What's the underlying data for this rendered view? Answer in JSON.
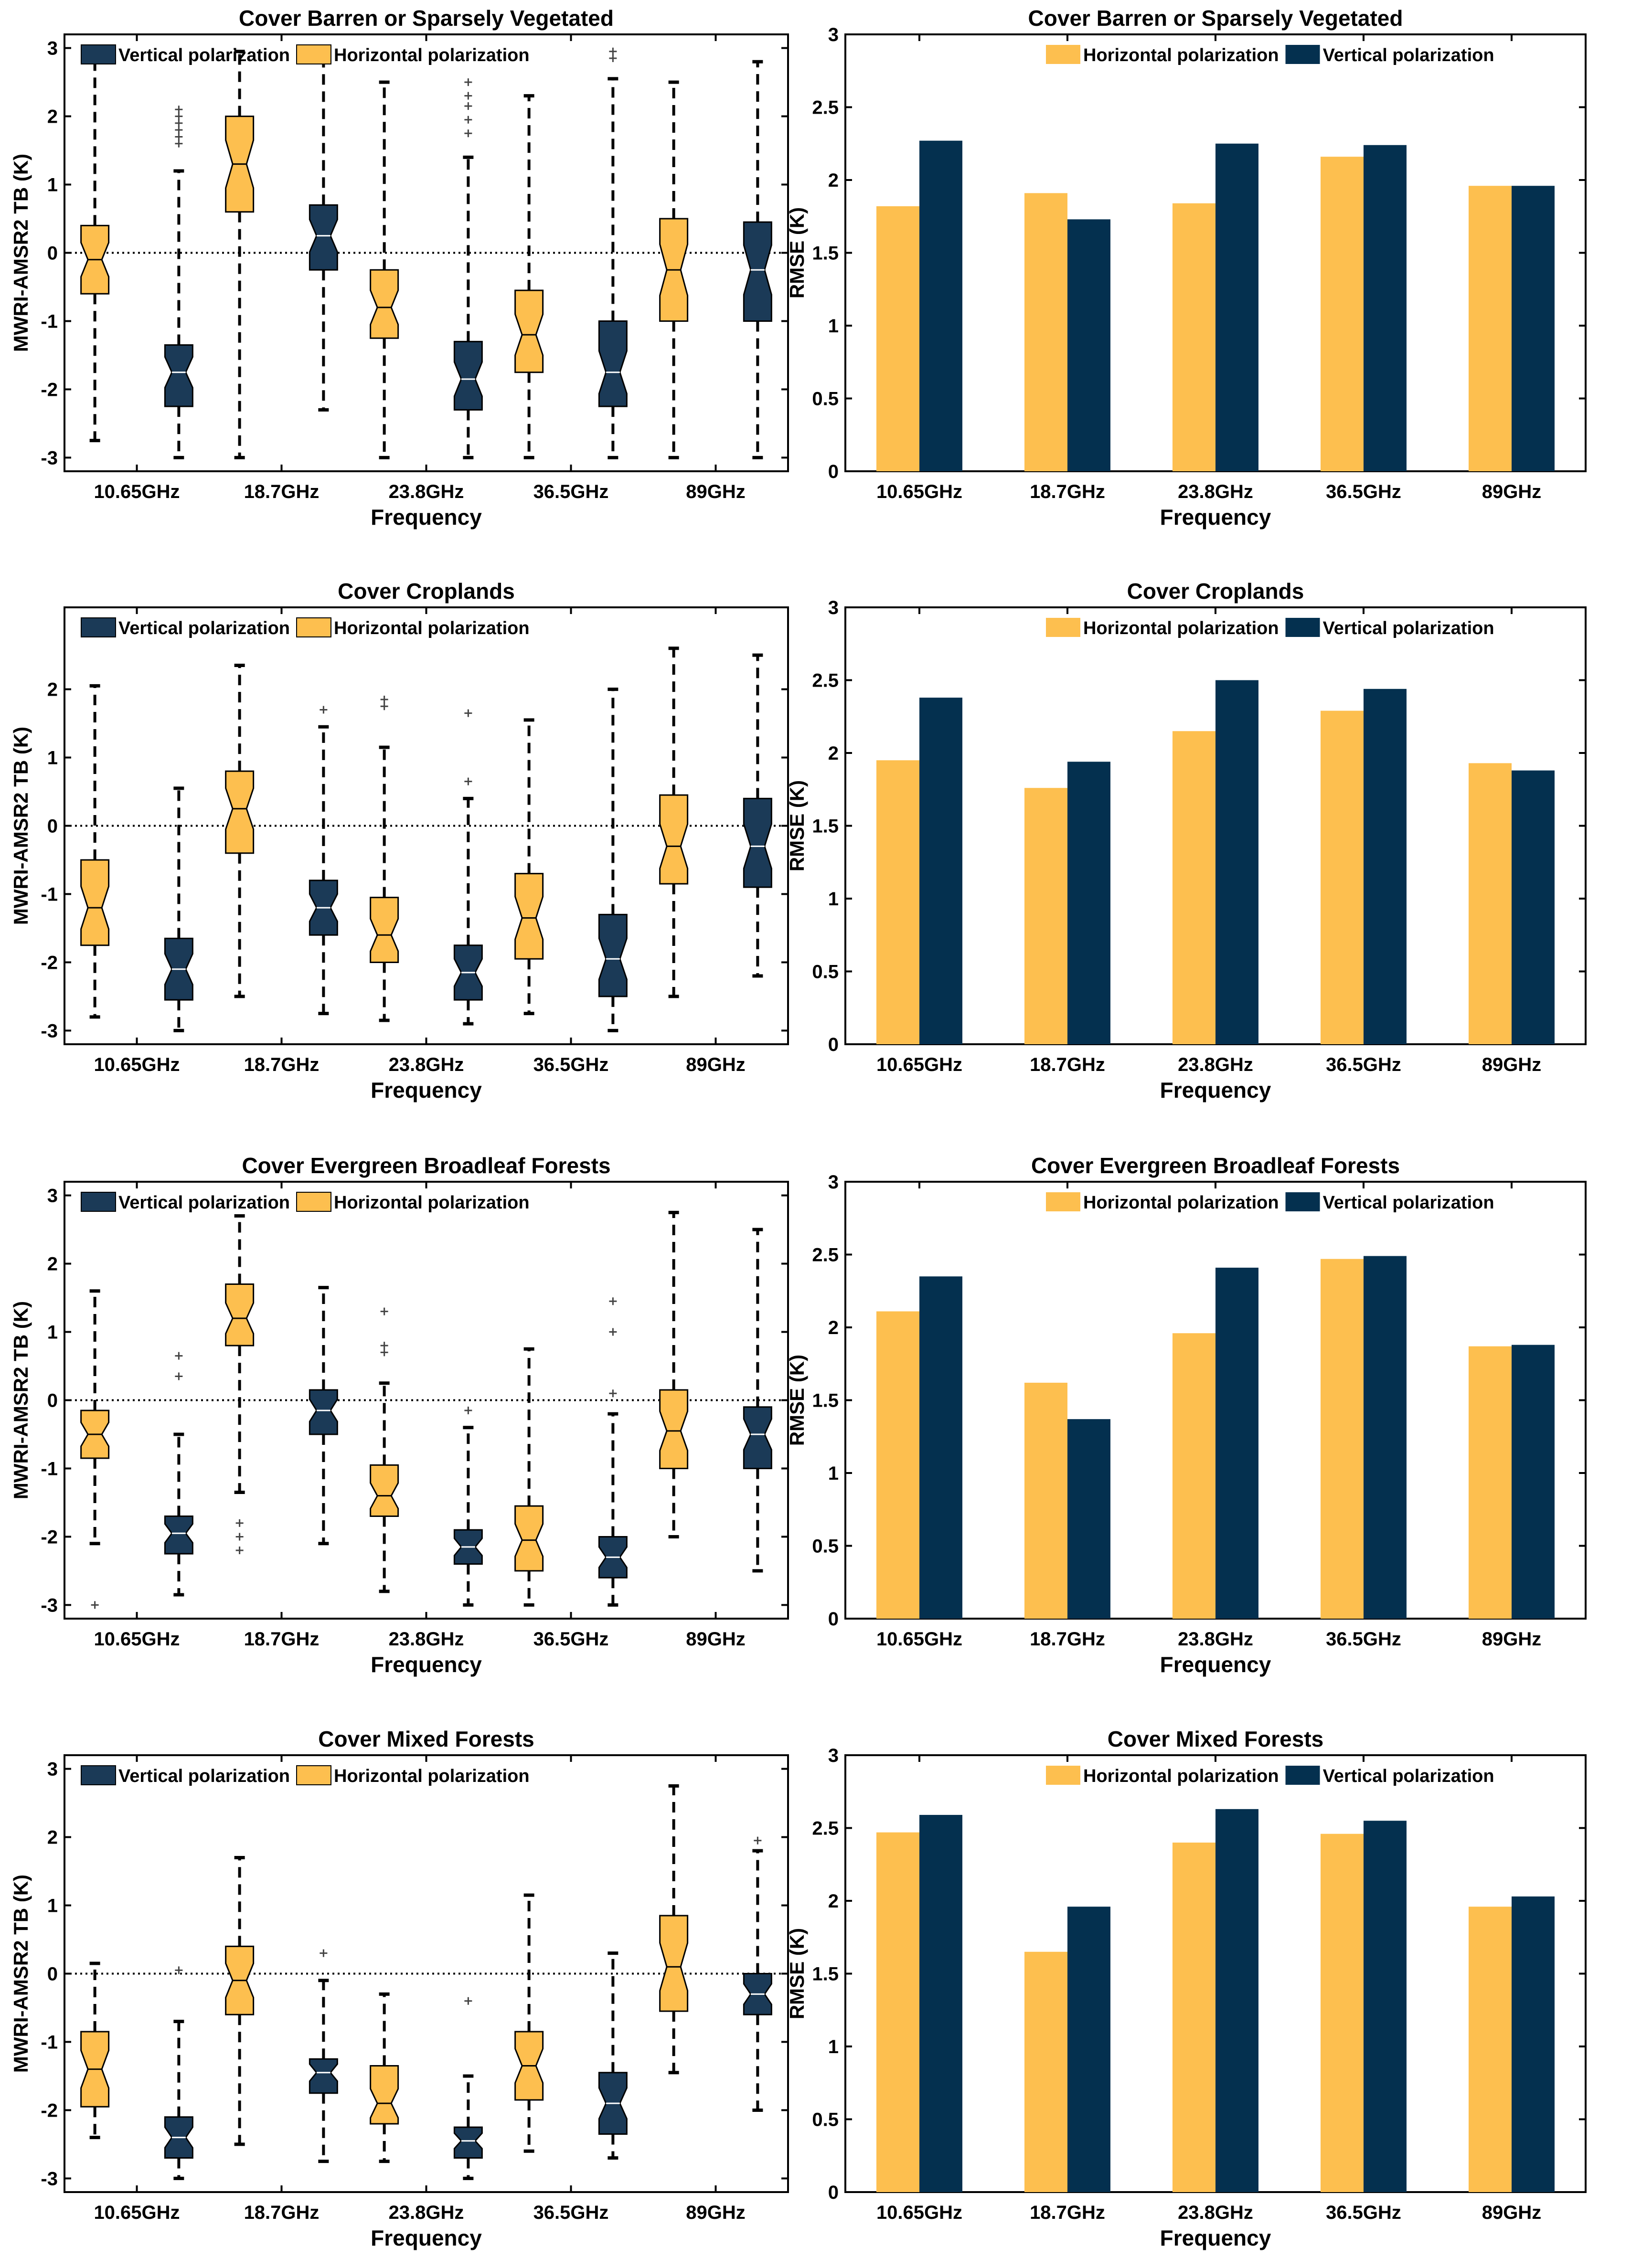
{
  "figure": {
    "xlabel": "Frequency",
    "box_ylabel": "MWRI-AMSR2 TB (K)",
    "bar_ylabel": "RMSE (K)",
    "frequencies": [
      "10.65GHz",
      "18.7GHz",
      "23.8GHz",
      "36.5GHz",
      "89GHz"
    ],
    "legend": {
      "vertical": "Vertical polarization",
      "horizontal": "Horizontal polarization"
    },
    "colors": {
      "horizontal": "#fdbf4f",
      "vertical_box": "#1b3a57",
      "vertical_bar": "#04304f",
      "axis": "#000000"
    }
  },
  "chart_data": [
    {
      "type": "box",
      "title": "Cover  Barren or Sparsely Vegetated",
      "xlabel": "Frequency",
      "ylabel": "MWRI-AMSR2 TB (K)",
      "ylim": [
        -3.2,
        3.2
      ],
      "yticks": [
        -3,
        -2,
        -1,
        0,
        1,
        2,
        3
      ],
      "legend_order": [
        "vertical",
        "horizontal"
      ],
      "categories": [
        "10.65GHz",
        "18.7GHz",
        "23.8GHz",
        "36.5GHz",
        "89GHz"
      ],
      "series": [
        {
          "name": "Horizontal polarization",
          "key": "horizontal",
          "boxes": [
            {
              "min": -2.75,
              "q1": -0.6,
              "median": -0.1,
              "q3": 0.4,
              "max": 2.8,
              "outliers": []
            },
            {
              "min": -3.0,
              "q1": 0.6,
              "median": 1.3,
              "q3": 2.0,
              "max": 2.95,
              "outliers": []
            },
            {
              "min": -3.0,
              "q1": -1.25,
              "median": -0.8,
              "q3": -0.25,
              "max": 2.5,
              "outliers": []
            },
            {
              "min": -3.0,
              "q1": -1.75,
              "median": -1.2,
              "q3": -0.55,
              "max": 2.3,
              "outliers": []
            },
            {
              "min": -3.0,
              "q1": -1.0,
              "median": -0.25,
              "q3": 0.5,
              "max": 2.5,
              "outliers": []
            }
          ]
        },
        {
          "name": "Vertical polarization",
          "key": "vertical",
          "boxes": [
            {
              "min": -3.0,
              "q1": -2.25,
              "median": -1.75,
              "q3": -1.35,
              "max": 1.2,
              "outliers": [
                1.6,
                1.7,
                1.8,
                1.9,
                2.0,
                2.1
              ]
            },
            {
              "min": -2.3,
              "q1": -0.25,
              "median": 0.25,
              "q3": 0.7,
              "max": 3.0,
              "outliers": []
            },
            {
              "min": -3.0,
              "q1": -2.3,
              "median": -1.85,
              "q3": -1.3,
              "max": 1.4,
              "outliers": [
                1.75,
                1.95,
                2.15,
                2.3,
                2.5
              ]
            },
            {
              "min": -3.0,
              "q1": -2.25,
              "median": -1.75,
              "q3": -1.0,
              "max": 2.55,
              "outliers": [
                2.85,
                2.95
              ]
            },
            {
              "min": -3.0,
              "q1": -1.0,
              "median": -0.25,
              "q3": 0.45,
              "max": 2.8,
              "outliers": []
            }
          ]
        }
      ]
    },
    {
      "type": "bar",
      "title": "Cover  Barren or Sparsely Vegetated",
      "xlabel": "Frequency",
      "ylabel": "RMSE (K)",
      "ylim": [
        0,
        3
      ],
      "yticks": [
        0,
        0.5,
        1,
        1.5,
        2,
        2.5,
        3
      ],
      "legend_order": [
        "horizontal",
        "vertical"
      ],
      "categories": [
        "10.65GHz",
        "18.7GHz",
        "23.8GHz",
        "36.5GHz",
        "89GHz"
      ],
      "series": [
        {
          "name": "Horizontal polarization",
          "key": "horizontal",
          "values": [
            1.82,
            1.91,
            1.84,
            2.16,
            1.96
          ]
        },
        {
          "name": "Vertical polarization",
          "key": "vertical",
          "values": [
            2.27,
            1.73,
            2.25,
            2.24,
            1.96
          ]
        }
      ]
    },
    {
      "type": "box",
      "title": "Cover  Croplands",
      "xlabel": "Frequency",
      "ylabel": "MWRI-AMSR2 TB (K)",
      "ylim": [
        -3.2,
        3.2
      ],
      "yticks": [
        -3,
        -2,
        -1,
        0,
        1,
        2
      ],
      "legend_order": [
        "vertical",
        "horizontal"
      ],
      "categories": [
        "10.65GHz",
        "18.7GHz",
        "23.8GHz",
        "36.5GHz",
        "89GHz"
      ],
      "series": [
        {
          "name": "Horizontal polarization",
          "key": "horizontal",
          "boxes": [
            {
              "min": -2.8,
              "q1": -1.75,
              "median": -1.2,
              "q3": -0.5,
              "max": 2.05,
              "outliers": []
            },
            {
              "min": -2.5,
              "q1": -0.4,
              "median": 0.25,
              "q3": 0.8,
              "max": 2.35,
              "outliers": []
            },
            {
              "min": -2.85,
              "q1": -2.0,
              "median": -1.6,
              "q3": -1.05,
              "max": 1.15,
              "outliers": [
                1.75,
                1.85
              ]
            },
            {
              "min": -2.75,
              "q1": -1.95,
              "median": -1.35,
              "q3": -0.7,
              "max": 1.55,
              "outliers": []
            },
            {
              "min": -2.5,
              "q1": -0.85,
              "median": -0.3,
              "q3": 0.45,
              "max": 2.6,
              "outliers": []
            }
          ]
        },
        {
          "name": "Vertical polarization",
          "key": "vertical",
          "boxes": [
            {
              "min": -3.0,
              "q1": -2.55,
              "median": -2.1,
              "q3": -1.65,
              "max": 0.55,
              "outliers": []
            },
            {
              "min": -2.75,
              "q1": -1.6,
              "median": -1.2,
              "q3": -0.8,
              "max": 1.45,
              "outliers": [
                1.7
              ]
            },
            {
              "min": -2.9,
              "q1": -2.55,
              "median": -2.15,
              "q3": -1.75,
              "max": 0.4,
              "outliers": [
                0.65,
                1.65
              ]
            },
            {
              "min": -3.0,
              "q1": -2.5,
              "median": -1.95,
              "q3": -1.3,
              "max": 2.0,
              "outliers": []
            },
            {
              "min": -2.2,
              "q1": -0.9,
              "median": -0.3,
              "q3": 0.4,
              "max": 2.5,
              "outliers": []
            }
          ]
        }
      ]
    },
    {
      "type": "bar",
      "title": "Cover  Croplands",
      "xlabel": "Frequency",
      "ylabel": "RMSE (K)",
      "ylim": [
        0,
        3
      ],
      "yticks": [
        0,
        0.5,
        1,
        1.5,
        2,
        2.5,
        3
      ],
      "legend_order": [
        "horizontal",
        "vertical"
      ],
      "categories": [
        "10.65GHz",
        "18.7GHz",
        "23.8GHz",
        "36.5GHz",
        "89GHz"
      ],
      "series": [
        {
          "name": "Horizontal polarization",
          "key": "horizontal",
          "values": [
            1.95,
            1.76,
            2.15,
            2.29,
            1.93
          ]
        },
        {
          "name": "Vertical polarization",
          "key": "vertical",
          "values": [
            2.38,
            1.94,
            2.5,
            2.44,
            1.88
          ]
        }
      ]
    },
    {
      "type": "box",
      "title": "Cover  Evergreen Broadleaf Forests",
      "xlabel": "Frequency",
      "ylabel": "MWRI-AMSR2 TB (K)",
      "ylim": [
        -3.2,
        3.2
      ],
      "yticks": [
        -3,
        -2,
        -1,
        0,
        1,
        2,
        3
      ],
      "legend_order": [
        "vertical",
        "horizontal"
      ],
      "categories": [
        "10.65GHz",
        "18.7GHz",
        "23.8GHz",
        "36.5GHz",
        "89GHz"
      ],
      "series": [
        {
          "name": "Horizontal polarization",
          "key": "horizontal",
          "boxes": [
            {
              "min": -2.1,
              "q1": -0.85,
              "median": -0.5,
              "q3": -0.15,
              "max": 1.6,
              "outliers": [
                -3.0
              ]
            },
            {
              "min": -1.35,
              "q1": 0.8,
              "median": 1.2,
              "q3": 1.7,
              "max": 2.7,
              "outliers": [
                -1.8,
                -2.0,
                -2.2
              ]
            },
            {
              "min": -2.8,
              "q1": -1.7,
              "median": -1.4,
              "q3": -0.95,
              "max": 0.25,
              "outliers": [
                0.7,
                0.8,
                1.3
              ]
            },
            {
              "min": -3.0,
              "q1": -2.5,
              "median": -2.05,
              "q3": -1.55,
              "max": 0.75,
              "outliers": []
            },
            {
              "min": -2.0,
              "q1": -1.0,
              "median": -0.45,
              "q3": 0.15,
              "max": 2.75,
              "outliers": []
            }
          ]
        },
        {
          "name": "Vertical polarization",
          "key": "vertical",
          "boxes": [
            {
              "min": -2.85,
              "q1": -2.25,
              "median": -1.95,
              "q3": -1.7,
              "max": -0.5,
              "outliers": [
                0.35,
                0.65
              ]
            },
            {
              "min": -2.1,
              "q1": -0.5,
              "median": -0.15,
              "q3": 0.15,
              "max": 1.65,
              "outliers": []
            },
            {
              "min": -3.0,
              "q1": -2.4,
              "median": -2.15,
              "q3": -1.9,
              "max": -0.4,
              "outliers": [
                -0.15
              ]
            },
            {
              "min": -3.0,
              "q1": -2.6,
              "median": -2.3,
              "q3": -2.0,
              "max": -0.2,
              "outliers": [
                0.1,
                1.0,
                1.45
              ]
            },
            {
              "min": -2.5,
              "q1": -1.0,
              "median": -0.5,
              "q3": -0.1,
              "max": 2.5,
              "outliers": []
            }
          ]
        }
      ]
    },
    {
      "type": "bar",
      "title": "Cover  Evergreen Broadleaf Forests",
      "xlabel": "Frequency",
      "ylabel": "RMSE (K)",
      "ylim": [
        0,
        3
      ],
      "yticks": [
        0,
        0.5,
        1,
        1.5,
        2,
        2.5,
        3
      ],
      "legend_order": [
        "horizontal",
        "vertical"
      ],
      "categories": [
        "10.65GHz",
        "18.7GHz",
        "23.8GHz",
        "36.5GHz",
        "89GHz"
      ],
      "series": [
        {
          "name": "Horizontal polarization",
          "key": "horizontal",
          "values": [
            2.11,
            1.62,
            1.96,
            2.47,
            1.87
          ]
        },
        {
          "name": "Vertical polarization",
          "key": "vertical",
          "values": [
            2.35,
            1.37,
            2.41,
            2.49,
            1.88
          ]
        }
      ]
    },
    {
      "type": "box",
      "title": "Cover  Mixed Forests",
      "xlabel": "Frequency",
      "ylabel": "MWRI-AMSR2 TB (K)",
      "ylim": [
        -3.2,
        3.2
      ],
      "yticks": [
        -3,
        -2,
        -1,
        0,
        1,
        2,
        3
      ],
      "legend_order": [
        "vertical",
        "horizontal"
      ],
      "categories": [
        "10.65GHz",
        "18.7GHz",
        "23.8GHz",
        "36.5GHz",
        "89GHz"
      ],
      "series": [
        {
          "name": "Horizontal polarization",
          "key": "horizontal",
          "boxes": [
            {
              "min": -2.4,
              "q1": -1.95,
              "median": -1.4,
              "q3": -0.85,
              "max": 0.15,
              "outliers": []
            },
            {
              "min": -2.5,
              "q1": -0.6,
              "median": -0.1,
              "q3": 0.4,
              "max": 1.7,
              "outliers": []
            },
            {
              "min": -2.75,
              "q1": -2.2,
              "median": -1.9,
              "q3": -1.35,
              "max": -0.3,
              "outliers": []
            },
            {
              "min": -2.6,
              "q1": -1.85,
              "median": -1.35,
              "q3": -0.85,
              "max": 1.15,
              "outliers": []
            },
            {
              "min": -1.45,
              "q1": -0.55,
              "median": 0.1,
              "q3": 0.85,
              "max": 2.75,
              "outliers": []
            }
          ]
        },
        {
          "name": "Vertical polarization",
          "key": "vertical",
          "boxes": [
            {
              "min": -3.0,
              "q1": -2.7,
              "median": -2.4,
              "q3": -2.1,
              "max": -0.7,
              "outliers": [
                0.05
              ]
            },
            {
              "min": -2.75,
              "q1": -1.75,
              "median": -1.45,
              "q3": -1.25,
              "max": -0.1,
              "outliers": [
                0.3
              ]
            },
            {
              "min": -3.0,
              "q1": -2.7,
              "median": -2.45,
              "q3": -2.25,
              "max": -1.5,
              "outliers": [
                -0.4
              ]
            },
            {
              "min": -2.7,
              "q1": -2.35,
              "median": -1.9,
              "q3": -1.45,
              "max": 0.3,
              "outliers": []
            },
            {
              "min": -2.0,
              "q1": -0.6,
              "median": -0.3,
              "q3": 0.0,
              "max": 1.8,
              "outliers": [
                1.95
              ]
            }
          ]
        }
      ]
    },
    {
      "type": "bar",
      "title": "Cover  Mixed Forests",
      "xlabel": "Frequency",
      "ylabel": "RMSE (K)",
      "ylim": [
        0,
        3
      ],
      "yticks": [
        0,
        0.5,
        1,
        1.5,
        2,
        2.5,
        3
      ],
      "legend_order": [
        "horizontal",
        "vertical"
      ],
      "categories": [
        "10.65GHz",
        "18.7GHz",
        "23.8GHz",
        "36.5GHz",
        "89GHz"
      ],
      "series": [
        {
          "name": "Horizontal polarization",
          "key": "horizontal",
          "values": [
            2.47,
            1.65,
            2.4,
            2.46,
            1.96
          ]
        },
        {
          "name": "Vertical polarization",
          "key": "vertical",
          "values": [
            2.59,
            1.96,
            2.63,
            2.55,
            2.03
          ]
        }
      ]
    }
  ]
}
